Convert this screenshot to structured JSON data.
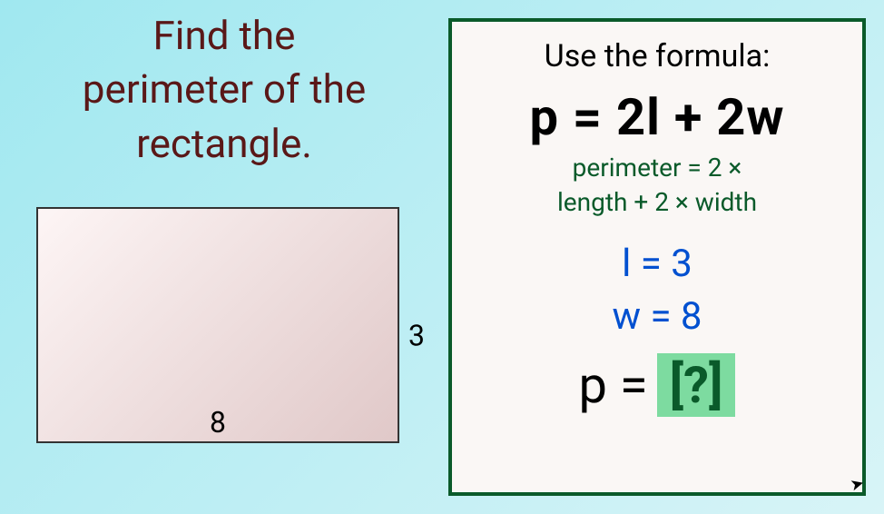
{
  "colors": {
    "background_gradient_start": "#a0e8f0",
    "background_gradient_end": "#d8f4f7",
    "title_color": "#5a1818",
    "rect_fill_tl": "#fdf5f5",
    "rect_fill_br": "#e0c8c8",
    "panel_border": "#0a5a2a",
    "panel_bg": "#faf7f5",
    "desc_color": "#0a5a2a",
    "value_color": "#0050d0",
    "answer_bg": "#7ddba0",
    "answer_color": "#0a5a2a"
  },
  "title": {
    "line1": "Find the",
    "line2": "perimeter of the",
    "line3": "rectangle."
  },
  "rectangle": {
    "width_label": "8",
    "height_label": "3"
  },
  "formula_box": {
    "heading": "Use the formula:",
    "formula": "p = 2l + 2w",
    "desc_line1": "perimeter = 2 ×",
    "desc_line2": "length + 2 × width",
    "length_line": "l = 3",
    "width_line": "w = 8",
    "answer_prefix": "p =",
    "answer_placeholder": "[?]"
  },
  "fonts": {
    "title_size": 44,
    "formula_size": 56,
    "desc_size": 28,
    "value_size": 42,
    "dim_size": 32
  }
}
